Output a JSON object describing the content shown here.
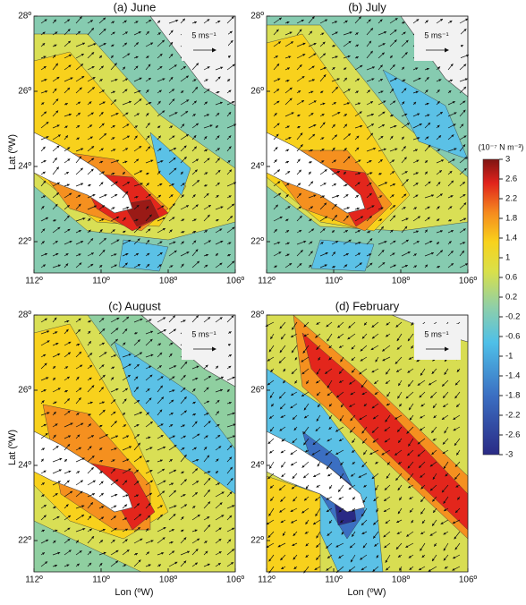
{
  "panels": [
    {
      "title": "(a) June",
      "vector_label": "5 ms⁻¹"
    },
    {
      "title": "(b) July",
      "vector_label": "5 ms⁻¹"
    },
    {
      "title": "(c) August",
      "vector_label": "5 ms⁻¹"
    },
    {
      "title": "(d) February",
      "vector_label": "5 ms⁻¹"
    }
  ],
  "lat_ticks": [
    "28º",
    "26º",
    "24º",
    "22º"
  ],
  "lon_ticks": [
    "112º",
    "110º",
    "108º",
    "106º"
  ],
  "y_label": "Lat (ºW)",
  "x_label": "Lon (ºW)",
  "colorbar": {
    "title": "(10⁻⁷ N m⁻³)",
    "ticks": [
      3,
      2.6,
      2.2,
      1.8,
      1.4,
      1,
      0.6,
      0.2,
      -0.2,
      -0.6,
      -1,
      -1.4,
      -1.8,
      -2.2,
      -2.6,
      -3
    ]
  }
}
